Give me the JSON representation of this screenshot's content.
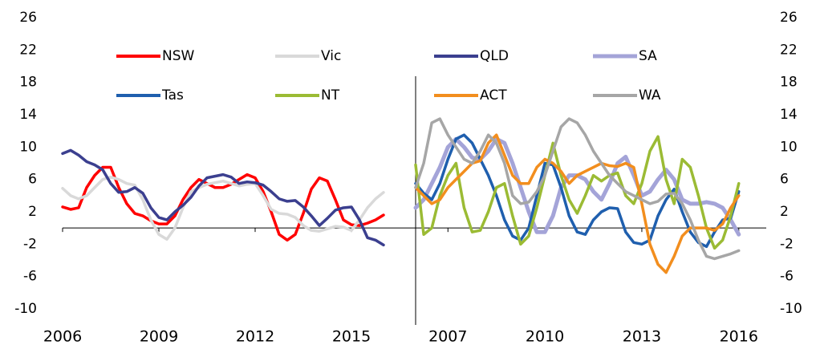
{
  "chart_data": [
    {
      "type": "line",
      "x": [
        2006,
        2006.25,
        2006.5,
        2006.75,
        2007,
        2007.25,
        2007.5,
        2007.75,
        2008,
        2008.25,
        2008.5,
        2008.75,
        2009,
        2009.25,
        2009.5,
        2009.75,
        2010,
        2010.25,
        2010.5,
        2010.75,
        2011,
        2011.25,
        2011.5,
        2011.75,
        2012,
        2012.25,
        2012.5,
        2012.75,
        2013,
        2013.25,
        2013.5,
        2013.75,
        2014,
        2014.25,
        2014.5,
        2014.75,
        2015,
        2015.25,
        2015.5,
        2015.75,
        2016
      ],
      "xlim": [
        2006,
        2017
      ],
      "xticks": [
        2006,
        2009,
        2012,
        2015
      ],
      "ylim": [
        -10,
        26
      ],
      "yticks": [
        -10,
        -6,
        -2,
        2,
        6,
        10,
        14,
        18,
        22,
        26
      ],
      "series": [
        {
          "name": "NSW",
          "color": "#ff0000",
          "values": [
            2.6,
            2.3,
            2.5,
            5,
            6.5,
            7.5,
            7.5,
            5,
            3,
            1.8,
            1.5,
            0.9,
            0.5,
            0.5,
            1.5,
            3.5,
            5,
            6,
            5.5,
            5,
            5,
            5.4,
            6,
            6.6,
            6.2,
            4.5,
            2,
            -0.8,
            -1.5,
            -0.8,
            1.8,
            4.8,
            6.2,
            5.8,
            3.5,
            1,
            0.4,
            0.3,
            0.6,
            1,
            1.6
          ]
        },
        {
          "name": "Vic",
          "color": "#d9d9d9",
          "values": [
            4.9,
            4,
            3.6,
            4,
            5,
            6,
            6.3,
            6,
            5.5,
            5.3,
            3.5,
            1,
            -0.8,
            -1.4,
            0,
            2.5,
            4.5,
            5,
            5.4,
            5.6,
            5.8,
            5.5,
            5.2,
            5.4,
            5.5,
            4,
            2.3,
            1.8,
            1.7,
            1.3,
            0.3,
            -0.3,
            -0.4,
            -0.1,
            0.2,
            0.1,
            -0.3,
            1,
            2.5,
            3.6,
            4.4
          ]
        },
        {
          "name": "QLD",
          "color": "#3b3f8f",
          "values": [
            9.2,
            9.6,
            9,
            8.2,
            7.8,
            7.2,
            5.5,
            4.4,
            4.5,
            5,
            4.3,
            2.5,
            1.3,
            1,
            2,
            2.8,
            3.8,
            5.2,
            6.2,
            6.4,
            6.6,
            6.3,
            5.5,
            5.7,
            5.6,
            5.3,
            4.5,
            3.6,
            3.3,
            3.4,
            2.6,
            1.5,
            0.3,
            1.2,
            2.2,
            2.5,
            2.6,
            1,
            -1.2,
            -1.5,
            -2.1
          ]
        }
      ]
    },
    {
      "type": "line",
      "x": [
        2006,
        2006.25,
        2006.5,
        2006.75,
        2007,
        2007.25,
        2007.5,
        2007.75,
        2008,
        2008.25,
        2008.5,
        2008.75,
        2009,
        2009.25,
        2009.5,
        2009.75,
        2010,
        2010.25,
        2010.5,
        2010.75,
        2011,
        2011.25,
        2011.5,
        2011.75,
        2012,
        2012.25,
        2012.5,
        2012.75,
        2013,
        2013.25,
        2013.5,
        2013.75,
        2014,
        2014.25,
        2014.5,
        2014.75,
        2015,
        2015.25,
        2015.5,
        2015.75,
        2016
      ],
      "xlim": [
        2006,
        2016.85
      ],
      "xticks": [
        2007,
        2010,
        2013,
        2016
      ],
      "ylim": [
        -10,
        26
      ],
      "yticks": [
        -10,
        -6,
        -2,
        2,
        6,
        10,
        14,
        18,
        22,
        26
      ],
      "series": [
        {
          "name": "SA",
          "color": "#a4a4d8",
          "width": 5,
          "values": [
            2.5,
            3.5,
            5.5,
            7.5,
            10,
            11,
            10,
            8.7,
            8.5,
            9.5,
            11,
            10.5,
            8,
            5,
            2,
            -0.5,
            -0.5,
            1.5,
            5,
            6.5,
            6.5,
            6,
            4.5,
            3.5,
            5.5,
            8,
            8.8,
            6.5,
            4,
            4.5,
            6,
            7.2,
            6,
            3.5,
            3,
            3,
            3.2,
            3,
            2.5,
            1,
            -0.8
          ]
        },
        {
          "name": "Tas",
          "color": "#1f5fae",
          "values": [
            5.5,
            4.3,
            3.5,
            5.5,
            8.5,
            11,
            11.5,
            10.5,
            8.5,
            6.5,
            4,
            1,
            -1,
            -1.5,
            0,
            4,
            8,
            7.8,
            5,
            1.5,
            -0.5,
            -0.8,
            1,
            2,
            2.5,
            2.4,
            -0.5,
            -1.8,
            -2,
            -1.5,
            1.5,
            3.5,
            4.8,
            2,
            -0.5,
            -1.8,
            -2.3,
            -0.5,
            1,
            1.2,
            4.5
          ]
        },
        {
          "name": "NT",
          "color": "#9bbb34",
          "values": [
            7.8,
            -0.8,
            0,
            4,
            6.5,
            8,
            2.5,
            -0.5,
            -0.3,
            2,
            5,
            5.5,
            1.5,
            -2,
            -1,
            2.5,
            6.5,
            10.5,
            6.5,
            3.5,
            1.8,
            4,
            6.5,
            5.8,
            6.5,
            6.8,
            4,
            3,
            5.5,
            9.5,
            11.3,
            6,
            3,
            8.5,
            7.5,
            4,
            0,
            -2.5,
            -1.5,
            1.5,
            5.5
          ]
        },
        {
          "name": "ACT",
          "color": "#f28e1e",
          "values": [
            5,
            4,
            3,
            3.5,
            5,
            6,
            7,
            8,
            8.3,
            10.5,
            11.5,
            9,
            6.5,
            5.5,
            5.5,
            7.5,
            8.5,
            8,
            7,
            5.5,
            6.5,
            7,
            7.5,
            8,
            7.7,
            7.6,
            8,
            7.5,
            3,
            -2,
            -4.5,
            -5.5,
            -3.5,
            -1,
            0,
            0,
            0,
            -0.3,
            0.5,
            2.5,
            4
          ]
        },
        {
          "name": "WA",
          "color": "#a6a6a6",
          "values": [
            5,
            8,
            13,
            13.5,
            11.5,
            10,
            8.5,
            8,
            9.5,
            11.5,
            10.5,
            8,
            4,
            3,
            3.2,
            4.5,
            6.5,
            9.5,
            12.5,
            13.5,
            13,
            11.5,
            9.5,
            8,
            6.5,
            5.5,
            4.5,
            4,
            3.5,
            3,
            3.3,
            4.2,
            4.3,
            3,
            1,
            -1.5,
            -3.5,
            -3.8,
            -3.5,
            -3.2,
            -2.8
          ]
        }
      ]
    }
  ]
}
